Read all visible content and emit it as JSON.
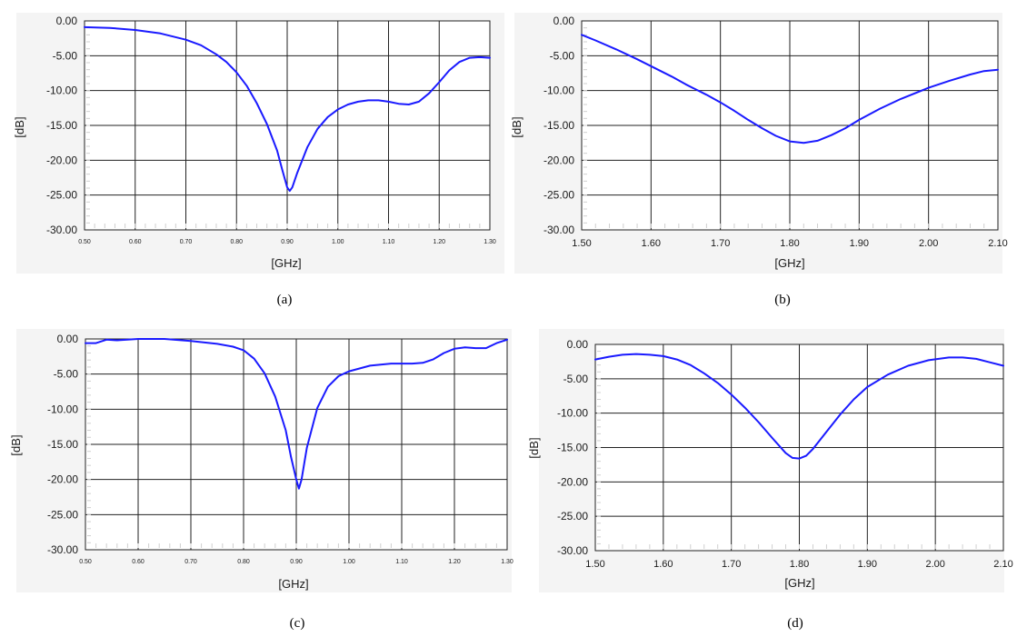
{
  "chart_data": [
    {
      "type": "line",
      "caption": "(a)",
      "xlabel": "[GHz]",
      "ylabel": "[dB]",
      "xlim": [
        0.5,
        1.3
      ],
      "ylim": [
        -30,
        0
      ],
      "xticks": [
        "0.50",
        "0.60",
        "0.70",
        "0.80",
        "0.90",
        "1.00",
        "1.10",
        "1.20",
        "1.30"
      ],
      "yticks": [
        "0.00",
        "-5.00",
        "-10.00",
        "-15.00",
        "-20.00",
        "-25.00",
        "-30.00"
      ],
      "grid": true,
      "series": [
        {
          "color": "#1a1aff",
          "x": [
            0.5,
            0.55,
            0.6,
            0.65,
            0.7,
            0.73,
            0.76,
            0.78,
            0.8,
            0.82,
            0.84,
            0.86,
            0.88,
            0.89,
            0.9,
            0.905,
            0.91,
            0.92,
            0.94,
            0.96,
            0.98,
            1.0,
            1.02,
            1.04,
            1.06,
            1.08,
            1.1,
            1.12,
            1.14,
            1.16,
            1.18,
            1.2,
            1.22,
            1.24,
            1.26,
            1.28,
            1.3
          ],
          "y": [
            -0.9,
            -1.0,
            -1.3,
            -1.8,
            -2.7,
            -3.5,
            -4.8,
            -5.9,
            -7.4,
            -9.3,
            -11.8,
            -14.8,
            -18.6,
            -21.3,
            -23.9,
            -24.4,
            -23.9,
            -21.8,
            -18.1,
            -15.5,
            -13.8,
            -12.7,
            -12.0,
            -11.6,
            -11.4,
            -11.4,
            -11.6,
            -11.9,
            -12.0,
            -11.6,
            -10.4,
            -8.8,
            -7.1,
            -5.9,
            -5.3,
            -5.2,
            -5.3
          ]
        }
      ]
    },
    {
      "type": "line",
      "caption": "(b)",
      "xlabel": "[GHz]",
      "ylabel": "[dB]",
      "xlim": [
        1.5,
        2.1
      ],
      "ylim": [
        -30,
        0
      ],
      "xticks": [
        "1.50",
        "1.60",
        "1.70",
        "1.80",
        "1.90",
        "2.00",
        "2.10"
      ],
      "yticks": [
        "0.00",
        "-5.00",
        "-10.00",
        "-15.00",
        "-20.00",
        "-25.00",
        "-30.00"
      ],
      "grid": true,
      "series": [
        {
          "color": "#1a1aff",
          "x": [
            1.5,
            1.52,
            1.55,
            1.58,
            1.6,
            1.63,
            1.65,
            1.68,
            1.7,
            1.72,
            1.74,
            1.76,
            1.78,
            1.8,
            1.82,
            1.84,
            1.86,
            1.88,
            1.9,
            1.93,
            1.96,
            2.0,
            2.03,
            2.06,
            2.08,
            2.1
          ],
          "y": [
            -2.0,
            -2.8,
            -4.1,
            -5.5,
            -6.5,
            -8.0,
            -9.1,
            -10.6,
            -11.7,
            -12.9,
            -14.2,
            -15.4,
            -16.5,
            -17.3,
            -17.5,
            -17.2,
            -16.4,
            -15.4,
            -14.2,
            -12.6,
            -11.2,
            -9.6,
            -8.6,
            -7.7,
            -7.2,
            -7.0
          ]
        }
      ]
    },
    {
      "type": "line",
      "caption": "(c)",
      "xlabel": "[GHz]",
      "ylabel": "[dB]",
      "xlim": [
        0.5,
        1.3
      ],
      "ylim": [
        -30,
        0
      ],
      "xticks": [
        "0.50",
        "0.60",
        "0.70",
        "0.80",
        "0.90",
        "1.00",
        "1.10",
        "1.20",
        "1.30"
      ],
      "yticks": [
        "0.00",
        "-5.00",
        "-10.00",
        "-15.00",
        "-20.00",
        "-25.00",
        "-30.00"
      ],
      "grid": true,
      "series": [
        {
          "color": "#1a1aff",
          "x": [
            0.5,
            0.52,
            0.54,
            0.56,
            0.6,
            0.65,
            0.7,
            0.75,
            0.78,
            0.8,
            0.82,
            0.84,
            0.86,
            0.88,
            0.89,
            0.9,
            0.905,
            0.91,
            0.92,
            0.94,
            0.96,
            0.98,
            1.0,
            1.04,
            1.08,
            1.12,
            1.14,
            1.16,
            1.18,
            1.2,
            1.22,
            1.24,
            1.26,
            1.28,
            1.3
          ],
          "y": [
            -0.6,
            -0.6,
            -0.1,
            -0.2,
            0.0,
            0.0,
            -0.3,
            -0.7,
            -1.1,
            -1.6,
            -2.8,
            -4.9,
            -8.2,
            -13.0,
            -16.8,
            -20.0,
            -21.3,
            -20.0,
            -15.5,
            -9.8,
            -6.8,
            -5.3,
            -4.6,
            -3.8,
            -3.5,
            -3.5,
            -3.4,
            -2.9,
            -2.0,
            -1.4,
            -1.2,
            -1.3,
            -1.3,
            -0.6,
            -0.1
          ]
        }
      ]
    },
    {
      "type": "line",
      "caption": "(d)",
      "xlabel": "[GHz]",
      "ylabel": "[dB]",
      "xlim": [
        1.5,
        2.1
      ],
      "ylim": [
        -30,
        0
      ],
      "xticks": [
        "1.50",
        "1.60",
        "1.70",
        "1.80",
        "1.90",
        "2.00",
        "2.10"
      ],
      "yticks": [
        "0.00",
        "-5.00",
        "-10.00",
        "-15.00",
        "-20.00",
        "-25.00",
        "-30.00"
      ],
      "grid": true,
      "series": [
        {
          "color": "#1a1aff",
          "x": [
            1.5,
            1.52,
            1.54,
            1.56,
            1.58,
            1.6,
            1.62,
            1.64,
            1.66,
            1.68,
            1.7,
            1.72,
            1.74,
            1.76,
            1.78,
            1.79,
            1.8,
            1.81,
            1.82,
            1.84,
            1.86,
            1.88,
            1.9,
            1.93,
            1.96,
            1.99,
            2.02,
            2.04,
            2.06,
            2.08,
            2.1
          ],
          "y": [
            -2.2,
            -1.8,
            -1.5,
            -1.4,
            -1.5,
            -1.7,
            -2.2,
            -3.0,
            -4.2,
            -5.6,
            -7.3,
            -9.2,
            -11.3,
            -13.6,
            -15.8,
            -16.5,
            -16.6,
            -16.2,
            -15.2,
            -12.7,
            -10.2,
            -8.0,
            -6.2,
            -4.4,
            -3.1,
            -2.3,
            -1.9,
            -1.9,
            -2.1,
            -2.6,
            -3.1
          ]
        }
      ]
    }
  ]
}
